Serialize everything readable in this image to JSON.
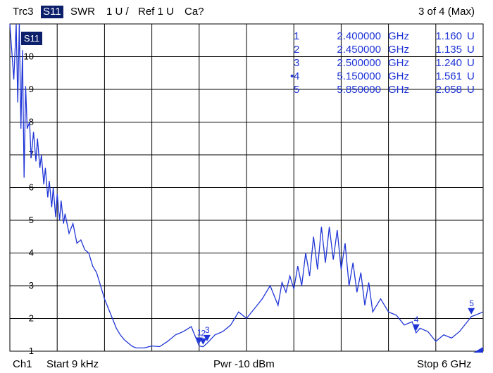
{
  "header": {
    "trace": "Trc3",
    "param": "S11",
    "format": "SWR",
    "scale": "1 U /",
    "ref": "Ref 1 U",
    "cal": "Ca?",
    "marker_status": "3 of 4 (Max)"
  },
  "footer": {
    "channel": "Ch1",
    "start": "Start  9 kHz",
    "power": "Pwr  -10 dBm",
    "stop": "Stop  6 GHz"
  },
  "trace_badge": "S11",
  "colors": {
    "trace": "#1f35d6",
    "grid": "#000000",
    "badge": "#0b1f6b"
  },
  "markers_table": [
    {
      "num": "1",
      "active": "",
      "freq": "2.400000",
      "freq_unit": "GHz",
      "value": "1.160",
      "value_unit": "U"
    },
    {
      "num": "2",
      "active": "",
      "freq": "2.450000",
      "freq_unit": "GHz",
      "value": "1.135",
      "value_unit": "U"
    },
    {
      "num": "3",
      "active": "",
      "freq": "2.500000",
      "freq_unit": "GHz",
      "value": "1.240",
      "value_unit": "U"
    },
    {
      "num": "4",
      "active": "•",
      "freq": "5.150000",
      "freq_unit": "GHz",
      "value": "1.561",
      "value_unit": "U"
    },
    {
      "num": "5",
      "active": "",
      "freq": "5.850000",
      "freq_unit": "GHz",
      "value": "2.058",
      "value_unit": "U"
    }
  ],
  "chart_data": {
    "type": "line",
    "title": "",
    "xlabel": "",
    "ylabel": "",
    "xlim": [
      0,
      6
    ],
    "ylim": [
      1,
      11
    ],
    "yticks": [
      "10",
      "9",
      "8",
      "7",
      "6",
      "5",
      "4",
      "3",
      "2",
      "1"
    ],
    "grid": true,
    "series": [
      {
        "values_x_GHz": [
          0.0,
          0.05,
          0.08,
          0.1,
          0.12,
          0.14,
          0.16,
          0.18,
          0.2,
          0.22,
          0.25,
          0.27,
          0.3,
          0.33,
          0.35,
          0.38,
          0.4,
          0.43,
          0.45,
          0.48,
          0.5,
          0.53,
          0.55,
          0.58,
          0.6,
          0.63,
          0.65,
          0.68,
          0.7,
          0.75,
          0.8,
          0.85,
          0.9,
          0.95,
          1.0,
          1.05,
          1.1,
          1.15,
          1.2,
          1.25,
          1.3,
          1.35,
          1.4,
          1.45,
          1.5,
          1.55,
          1.6,
          1.7,
          1.8,
          1.9,
          2.0,
          2.1,
          2.2,
          2.3,
          2.4,
          2.45,
          2.5,
          2.6,
          2.7,
          2.8,
          2.9,
          3.0,
          3.1,
          3.2,
          3.3,
          3.4,
          3.45,
          3.5,
          3.55,
          3.6,
          3.65,
          3.7,
          3.75,
          3.8,
          3.85,
          3.9,
          3.95,
          4.0,
          4.05,
          4.1,
          4.15,
          4.2,
          4.25,
          4.3,
          4.35,
          4.4,
          4.45,
          4.5,
          4.55,
          4.6,
          4.7,
          4.8,
          4.9,
          5.0,
          5.1,
          5.15,
          5.2,
          5.3,
          5.4,
          5.5,
          5.6,
          5.7,
          5.8,
          5.85,
          5.9,
          6.0
        ],
        "values_y_U": [
          11.0,
          9.3,
          11.0,
          8.6,
          11.0,
          7.8,
          10.2,
          6.3,
          9.1,
          7.8,
          8.0,
          6.9,
          7.7,
          6.8,
          7.5,
          6.6,
          7.0,
          6.1,
          6.6,
          5.7,
          6.2,
          5.4,
          6.0,
          5.1,
          5.8,
          5.0,
          5.6,
          4.9,
          5.2,
          4.6,
          4.9,
          4.3,
          4.4,
          4.1,
          4.0,
          3.6,
          3.4,
          3.0,
          2.6,
          2.3,
          2.0,
          1.7,
          1.5,
          1.35,
          1.25,
          1.15,
          1.1,
          1.1,
          1.16,
          1.14,
          1.3,
          1.5,
          1.6,
          1.75,
          1.16,
          1.135,
          1.24,
          1.5,
          1.6,
          1.8,
          2.2,
          2.0,
          2.3,
          2.6,
          3.0,
          2.4,
          3.1,
          2.8,
          3.3,
          2.9,
          3.6,
          3.0,
          4.0,
          3.3,
          4.5,
          3.5,
          4.8,
          3.7,
          4.8,
          3.8,
          4.7,
          3.5,
          4.3,
          3.0,
          3.7,
          2.8,
          3.4,
          2.4,
          3.1,
          2.2,
          2.6,
          2.2,
          2.1,
          1.8,
          1.9,
          1.561,
          1.7,
          1.6,
          1.3,
          1.5,
          1.4,
          1.6,
          1.9,
          2.058,
          2.1,
          2.2
        ]
      }
    ],
    "markers": [
      {
        "label": "1",
        "x": 2.4,
        "y": 1.16
      },
      {
        "label": "2",
        "x": 2.45,
        "y": 1.135
      },
      {
        "label": "3",
        "x": 2.5,
        "y": 1.24
      },
      {
        "label": "4",
        "x": 5.15,
        "y": 1.561
      },
      {
        "label": "5",
        "x": 5.85,
        "y": 2.058
      }
    ]
  }
}
